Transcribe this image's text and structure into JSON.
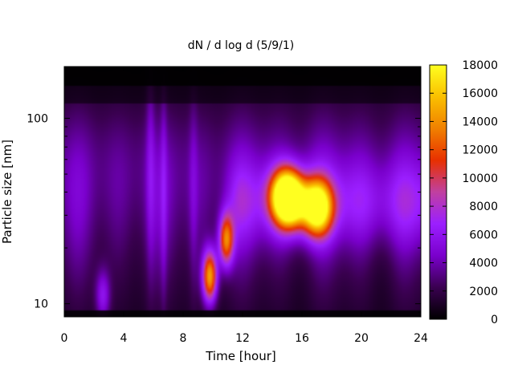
{
  "chart_data": {
    "type": "heatmap",
    "title": "dN / d log d (5/9/1)",
    "xlabel": "Time [hour]",
    "ylabel": "Particle size [nm]",
    "x_range": [
      0,
      24
    ],
    "x_ticks": [
      0,
      4,
      8,
      12,
      16,
      20,
      24
    ],
    "y_scale": "log",
    "y_range_nm": [
      8.5,
      190
    ],
    "y_tick_values": [
      10,
      100
    ],
    "y_ticks": [
      "10",
      "100"
    ],
    "colorbar": {
      "range": [
        0,
        18000
      ],
      "ticks": [
        "0",
        "2000",
        "4000",
        "6000",
        "8000",
        "10000",
        "12000",
        "14000",
        "16000",
        "18000"
      ],
      "colormap": [
        "#000000",
        "#3a0050",
        "#7a00cc",
        "#9b1fff",
        "#c040a0",
        "#e83000",
        "#f08000",
        "#fac000",
        "#ffff20"
      ]
    },
    "features": [
      {
        "label": "growing mode band",
        "time_range_h": [
          12,
          24
        ],
        "size_range_nm": [
          20,
          60
        ],
        "level": 6000
      },
      {
        "label": "peak",
        "time_h": 17,
        "size_nm": 33,
        "level": 17000
      },
      {
        "label": "peak",
        "time_h": 14.8,
        "size_nm": 38,
        "level": 12000
      },
      {
        "label": "peak",
        "time_h": 15.3,
        "size_nm": 36,
        "level": 14000
      },
      {
        "label": "peak",
        "time_h": 10.9,
        "size_nm": 22,
        "level": 11000
      },
      {
        "label": "peak",
        "time_h": 9.8,
        "size_nm": 14,
        "level": 13000
      },
      {
        "label": "feature",
        "time_h": 2.6,
        "size_nm": 11,
        "level": 4500
      }
    ]
  }
}
